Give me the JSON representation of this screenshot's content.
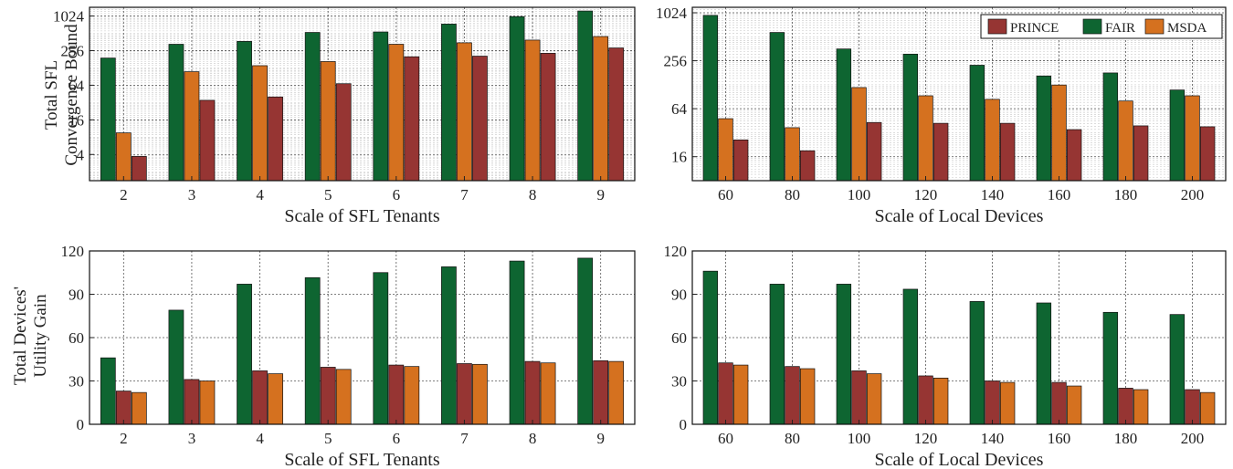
{
  "colors": {
    "PRINCE": "#963533",
    "FAIR": "#0e6531",
    "MSDA": "#d5711f"
  },
  "ylabels": {
    "top": [
      "Total SFL",
      "Convergence Bound"
    ],
    "bottom": [
      "Total Devices'",
      "Utility Gain"
    ]
  },
  "legend": {
    "labels": [
      "PRINCE",
      "FAIR",
      "MSDA"
    ],
    "placement": "top-right"
  },
  "chart_data": [
    {
      "id": "a",
      "type": "bar",
      "scale": "log2",
      "xlabel": "Scale of SFL Tenants",
      "ylabel": "Total SFL Convergence Bound",
      "categories": [
        "2",
        "3",
        "4",
        "5",
        "6",
        "7",
        "8",
        "9"
      ],
      "series_order": [
        "FAIR",
        "MSDA",
        "PRINCE"
      ],
      "series": [
        {
          "name": "FAIR",
          "values": [
            190,
            330,
            370,
            530,
            540,
            740,
            1000,
            1250
          ]
        },
        {
          "name": "MSDA",
          "values": [
            9.5,
            110,
            140,
            165,
            330,
            350,
            390,
            450
          ]
        },
        {
          "name": "PRINCE",
          "values": [
            3.7,
            35,
            40,
            68,
            200,
            205,
            230,
            285
          ]
        }
      ],
      "ylim": [
        1.4,
        1450
      ],
      "yticks": [
        4,
        16,
        64,
        256,
        1024
      ],
      "yticklabels": [
        "4",
        "16",
        "64",
        "256",
        "1024"
      ],
      "grid": true
    },
    {
      "id": "b",
      "type": "bar",
      "scale": "log2",
      "xlabel": "Scale of Local Devices",
      "ylabel": "Total SFL Convergence Bound",
      "categories": [
        "60",
        "80",
        "100",
        "120",
        "140",
        "160",
        "180",
        "200"
      ],
      "series_order": [
        "FAIR",
        "MSDA",
        "PRINCE"
      ],
      "series": [
        {
          "name": "FAIR",
          "values": [
            950,
            580,
            360,
            310,
            225,
            165,
            180,
            110
          ]
        },
        {
          "name": "MSDA",
          "values": [
            48,
            37,
            118,
            93,
            84,
            127,
            80,
            93
          ]
        },
        {
          "name": "PRINCE",
          "values": [
            26,
            19,
            43,
            42,
            42,
            35,
            39,
            38
          ]
        }
      ],
      "ylim": [
        8,
        1200
      ],
      "yticks": [
        16,
        64,
        256,
        1024
      ],
      "yticklabels": [
        "16",
        "64",
        "256",
        "1024"
      ],
      "grid": true,
      "legend": true
    },
    {
      "id": "c",
      "type": "bar",
      "scale": "linear",
      "xlabel": "Scale of SFL Tenants",
      "ylabel": "Total Devices' Utility Gain",
      "categories": [
        "2",
        "3",
        "4",
        "5",
        "6",
        "7",
        "8",
        "9"
      ],
      "series_order": [
        "FAIR",
        "PRINCE",
        "MSDA"
      ],
      "series": [
        {
          "name": "FAIR",
          "values": [
            46,
            79,
            97,
            101.5,
            105,
            109,
            113,
            115
          ]
        },
        {
          "name": "PRINCE",
          "values": [
            23,
            31,
            37,
            39.5,
            41,
            42,
            43.5,
            44
          ]
        },
        {
          "name": "MSDA",
          "values": [
            22,
            30,
            35,
            38,
            40,
            41.5,
            42.5,
            43.5
          ]
        }
      ],
      "ylim": [
        0,
        120
      ],
      "yticks": [
        0,
        30,
        60,
        90,
        120
      ],
      "yticklabels": [
        "0",
        "30",
        "60",
        "90",
        "120"
      ],
      "grid": true
    },
    {
      "id": "d",
      "type": "bar",
      "scale": "linear",
      "xlabel": "Scale of Local Devices",
      "ylabel": "Total Devices' Utility Gain",
      "categories": [
        "60",
        "80",
        "100",
        "120",
        "140",
        "160",
        "180",
        "200"
      ],
      "series_order": [
        "FAIR",
        "PRINCE",
        "MSDA"
      ],
      "series": [
        {
          "name": "FAIR",
          "values": [
            106,
            97,
            97,
            93.5,
            85,
            84,
            77.5,
            76
          ]
        },
        {
          "name": "PRINCE",
          "values": [
            42.5,
            40,
            37,
            33.5,
            30,
            29,
            25,
            24
          ]
        },
        {
          "name": "MSDA",
          "values": [
            41,
            38.5,
            35,
            32,
            29,
            26.5,
            24,
            22
          ]
        }
      ],
      "ylim": [
        0,
        120
      ],
      "yticks": [
        0,
        30,
        60,
        90,
        120
      ],
      "yticklabels": [
        "0",
        "30",
        "60",
        "90",
        "120"
      ],
      "grid": true
    }
  ]
}
